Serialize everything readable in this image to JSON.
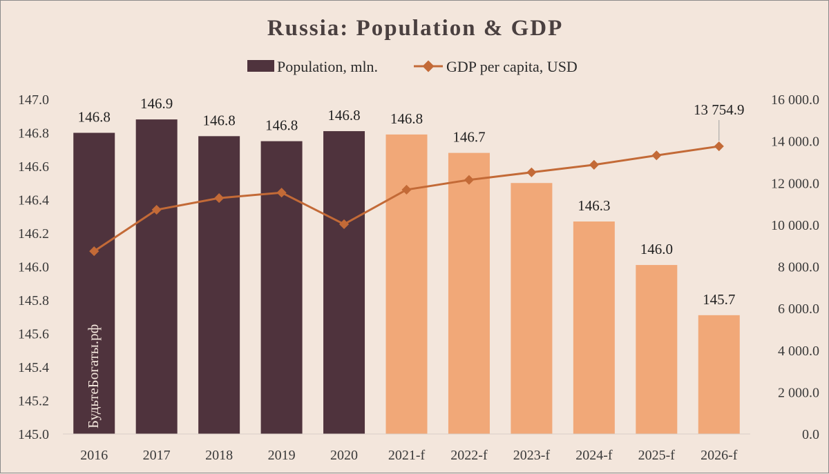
{
  "colors": {
    "background": "#f3e6dc",
    "actual_bar": "#4f333d",
    "forecast_bar": "#f1a878",
    "line": "#c36a37"
  },
  "watermark": "БудьтеБогаты.рф",
  "chart_data": {
    "type": "bar",
    "title": "Russia: Population & GDP",
    "categories": [
      "2016",
      "2017",
      "2018",
      "2019",
      "2020",
      "2021-f",
      "2022-f",
      "2023-f",
      "2024-f",
      "2025-f",
      "2026-f"
    ],
    "series": [
      {
        "name": "Population, mln.",
        "type": "bar",
        "axis": "left",
        "values": [
          146.8,
          146.88,
          146.78,
          146.75,
          146.81,
          146.79,
          146.68,
          146.5,
          146.27,
          146.01,
          145.71
        ],
        "data_labels": [
          "146.8",
          "146.9",
          "146.8",
          "146.8",
          "146.8",
          "146.8",
          "146.7",
          "",
          "146.3",
          "146.0",
          "145.7"
        ],
        "forecast_from_index": 5
      },
      {
        "name": "GDP per capita, USD",
        "type": "line",
        "axis": "right",
        "values": [
          8740,
          10720,
          11280,
          11540,
          10030,
          11680,
          12150,
          12510,
          12870,
          13320,
          13754.9
        ],
        "data_labels": [
          "",
          "",
          "",
          "",
          "",
          "",
          "",
          "",
          "",
          "",
          "13 754.9"
        ]
      }
    ],
    "y_left": {
      "min": 145.0,
      "max": 147.0,
      "ticks": [
        "145.0",
        "145.2",
        "145.4",
        "145.6",
        "145.8",
        "146.0",
        "146.2",
        "146.4",
        "146.6",
        "146.8",
        "147.0"
      ]
    },
    "y_right": {
      "min": 0,
      "max": 16000,
      "ticks": [
        "0.0",
        "2 000.0",
        "4 000.0",
        "6 000.0",
        "8 000.0",
        "10 000.0",
        "12 000.0",
        "14 000.0",
        "16 000.0"
      ]
    },
    "legend_position": "top",
    "grid": false
  }
}
